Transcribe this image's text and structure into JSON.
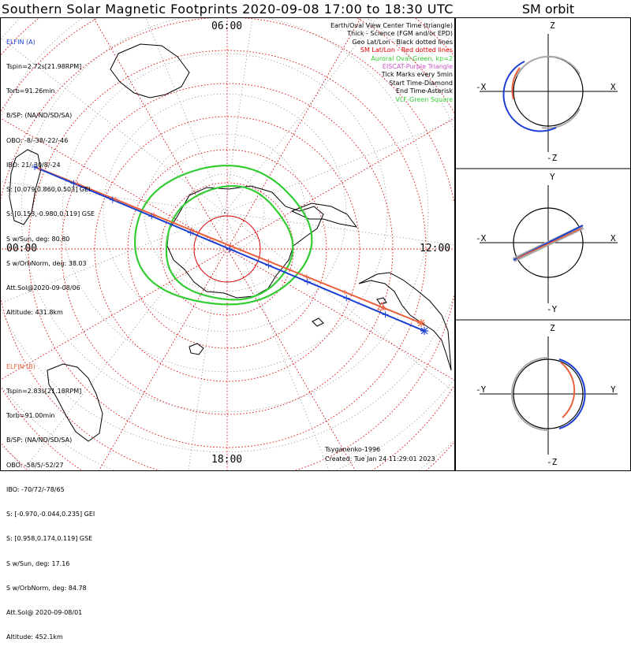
{
  "title": "Southern Solar Magnetic Footprints 2020-09-08 17:00 to 18:30 UTC",
  "orbit_title": "SM orbit",
  "map": {
    "time_labels": {
      "top": "06:00",
      "left": "00:00",
      "right": "12:00",
      "bottom": "18:00"
    }
  },
  "elfin_a": {
    "name": "ELFIN (A)",
    "color": "#1a3fd0",
    "lines": [
      "Tspin=2.72s[21.98RPM]",
      "Torb=91.26min",
      "B/SP: (NA/ND/SD/SA)",
      "OBO: -8/-38/-22/-46",
      "IBO: 21/-30/8/-24",
      "S: [0.079,0.860,0.503] GEI",
      "S: [0.153,-0.980,0.119] GSE",
      "S w/Sun, deg: 80.80",
      "S w/OrbNorm, deg: 38.03",
      "Att.Sol@2020-09-08/06",
      "Altitude: 431.8km"
    ]
  },
  "elfin_b": {
    "name": "ELFIN (B)",
    "color": "#e8603c",
    "lines": [
      "Tspin=2.83s[21.18RPM]",
      "Torb=91.00min",
      "B/SP: (NA/ND/SD/SA)",
      "OBO: -58/5/-52/27",
      "IBO: -70/72/-78/65",
      "S: [-0.970,-0.044,0.235] GEI",
      "S: [0.958,0.174,0.119] GSE",
      "S w/Sun, deg: 17.16",
      "S w/OrbNorm, deg: 84.78",
      "Att.Sol@ 2020-09-08/01",
      "Altitude: 452.1km"
    ]
  },
  "legend": [
    {
      "text": "Earth/Oval View Center Time (triangle)",
      "color": "#000000"
    },
    {
      "text": "Thick - Science (FGM and/or EPD)",
      "color": "#000000"
    },
    {
      "text": "Geo Lat/Lon - Black dotted lines",
      "color": "#000000"
    },
    {
      "text": "SM Lat/Lon - Red dotted lines",
      "color": "#e00000"
    },
    {
      "text": "Auroral Oval-Green, kp=2",
      "color": "#33cc33"
    },
    {
      "text": "EISCAT-Purple Triangle",
      "color": "#cc55cc"
    },
    {
      "text": "Tick Marks every 5min",
      "color": "#000000"
    },
    {
      "text": "Start Time-Diamond",
      "color": "#000000"
    },
    {
      "text": "End Time-Asterisk",
      "color": "#000000"
    },
    {
      "text": "VLF-Green Square",
      "color": "#33cc33"
    }
  ],
  "footer": {
    "model": "Tsyganenko-1996",
    "created": "Created: Tue Jan 24 11:29:01 2023"
  },
  "orbit_panels": [
    {
      "top": "Z",
      "bottom": "-Z",
      "left": "-X",
      "right": "X"
    },
    {
      "top": "Y",
      "bottom": "-Y",
      "left": "-X",
      "right": "X"
    },
    {
      "top": "Z",
      "bottom": "-Z",
      "left": "-Y",
      "right": "Y"
    }
  ]
}
